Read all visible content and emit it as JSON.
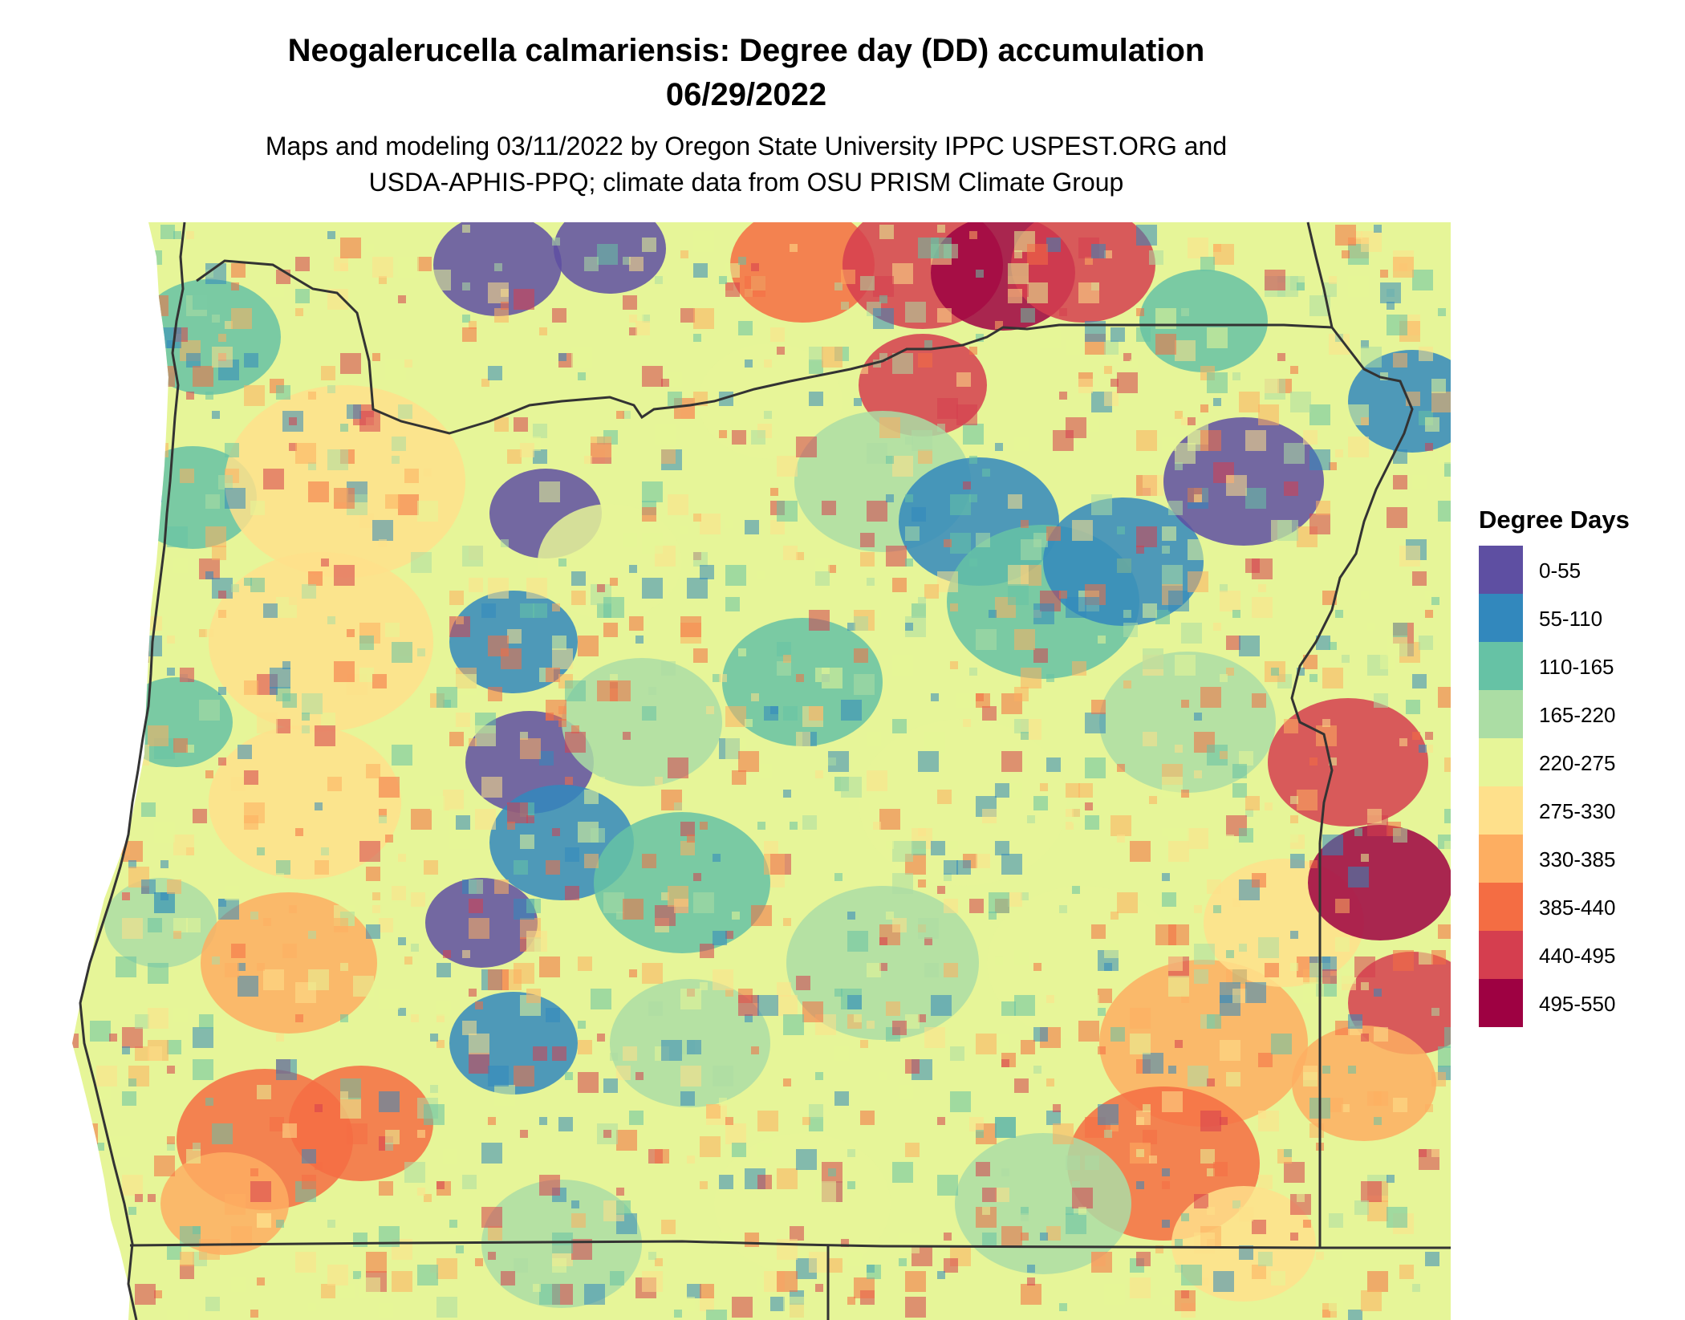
{
  "header": {
    "title_line1": "Neogalerucella calmariensis: Degree day (DD) accumulation",
    "title_line2": "06/29/2022",
    "subtitle_line1": "Maps and modeling 03/11/2022 by Oregon State University IPPC USPEST.ORG and",
    "subtitle_line2": "USDA-APHIS-PPQ; climate data from OSU PRISM Climate Group"
  },
  "legend": {
    "title": "Degree Days",
    "items": [
      {
        "label": "0-55",
        "color": "#5e4fa2"
      },
      {
        "label": "55-110",
        "color": "#3288bd"
      },
      {
        "label": "110-165",
        "color": "#66c2a5"
      },
      {
        "label": "165-220",
        "color": "#abdda4"
      },
      {
        "label": "220-275",
        "color": "#e6f598"
      },
      {
        "label": "275-330",
        "color": "#fee08b"
      },
      {
        "label": "330-385",
        "color": "#fdae61"
      },
      {
        "label": "385-440",
        "color": "#f46d43"
      },
      {
        "label": "440-495",
        "color": "#d53e4f"
      },
      {
        "label": "495-550",
        "color": "#9e0142"
      }
    ]
  },
  "map": {
    "region": "Oregon",
    "background_color": "#e6f598",
    "boundary_color": "#333333"
  }
}
